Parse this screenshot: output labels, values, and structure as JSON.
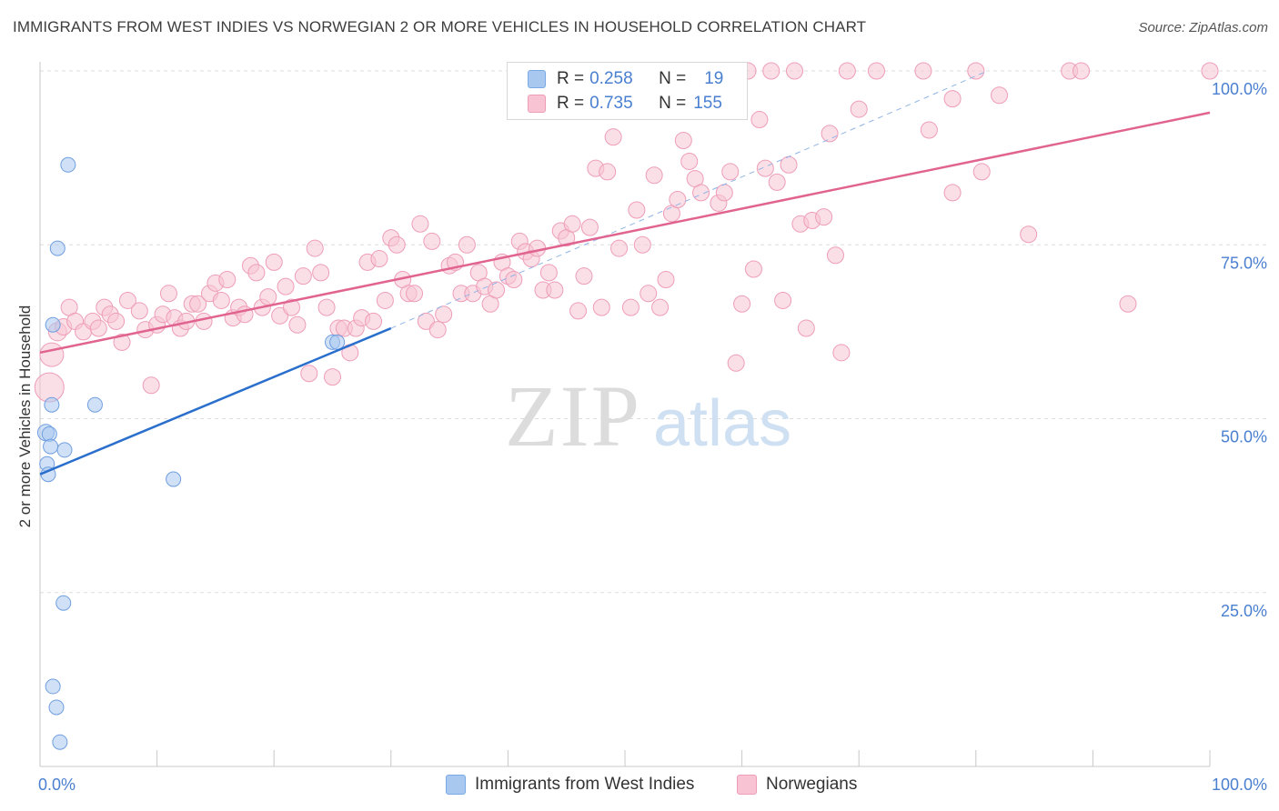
{
  "header": {
    "title": "IMMIGRANTS FROM WEST INDIES VS NORWEGIAN 2 OR MORE VEHICLES IN HOUSEHOLD CORRELATION CHART",
    "source": "Source: ZipAtlas.com"
  },
  "watermark": {
    "zip": "ZIP",
    "atlas": "atlas"
  },
  "stats_legend": {
    "rows": [
      {
        "r_label": "R =",
        "r_value": "0.258",
        "n_label": "N =",
        "n_value": "19",
        "color": "#a9c8f0",
        "border": "#7aaae6"
      },
      {
        "r_label": "R =",
        "r_value": "0.735",
        "n_label": "N =",
        "n_value": "155",
        "color": "#f8c4d4",
        "border": "#ee9db8"
      }
    ]
  },
  "chart_data": {
    "type": "scatter",
    "ylabel": "2 or more Vehicles in Household",
    "xlim": [
      0,
      100
    ],
    "ylim": [
      0,
      100
    ],
    "x_tick_labels": [
      {
        "value": 0,
        "label": "0.0%"
      },
      {
        "value": 100,
        "label": "100.0%"
      }
    ],
    "y_tick_labels": [
      {
        "value": 25,
        "label": "25.0%"
      },
      {
        "value": 50,
        "label": "50.0%"
      },
      {
        "value": 75,
        "label": "75.0%"
      },
      {
        "value": 100,
        "label": "100.0%"
      }
    ],
    "grid": true,
    "series": [
      {
        "name": "Immigrants from West Indies",
        "color": "#a9c8f0",
        "stroke": "#6f9ee0",
        "line_color": "#2a6fcc",
        "trend": {
          "x": [
            0,
            30
          ],
          "y": [
            42,
            63
          ],
          "dashed_to": [
            81,
            100
          ]
        },
        "points": [
          [
            2.4,
            86.5,
            8
          ],
          [
            1.5,
            74.5,
            8
          ],
          [
            1.1,
            63.5,
            8
          ],
          [
            1.0,
            52.0,
            8
          ],
          [
            0.5,
            48.0,
            9
          ],
          [
            0.8,
            47.8,
            8
          ],
          [
            0.9,
            46.0,
            8
          ],
          [
            2.1,
            45.5,
            8
          ],
          [
            0.6,
            43.5,
            8
          ],
          [
            0.7,
            42.0,
            8
          ],
          [
            4.7,
            52.0,
            8
          ],
          [
            11.4,
            41.3,
            8
          ],
          [
            25.0,
            61.0,
            8
          ],
          [
            25.4,
            61.0,
            8
          ],
          [
            2.0,
            23.5,
            8
          ],
          [
            1.1,
            11.5,
            8
          ],
          [
            1.4,
            8.5,
            8
          ],
          [
            1.7,
            3.5,
            8
          ]
        ]
      },
      {
        "name": "Norwegians",
        "color": "#f8c4d4",
        "stroke": "#ee9db8",
        "line_color": "#e0648f",
        "trend": {
          "x": [
            0,
            100
          ],
          "y": [
            59.5,
            94
          ]
        },
        "points": [
          [
            0.8,
            54.5,
            16
          ],
          [
            1.0,
            59.2,
            13
          ],
          [
            1.5,
            62.5,
            10
          ],
          [
            2.0,
            63.2,
            9
          ],
          [
            2.5,
            66.0,
            9
          ],
          [
            3.0,
            64.0,
            9
          ],
          [
            3.7,
            62.5,
            9
          ],
          [
            4.5,
            64.0,
            9
          ],
          [
            5.0,
            63.0,
            9
          ],
          [
            5.5,
            66.0,
            9
          ],
          [
            6.0,
            65.0,
            9
          ],
          [
            6.5,
            64.0,
            9
          ],
          [
            7.0,
            61.0,
            9
          ],
          [
            7.5,
            67.0,
            9
          ],
          [
            8.5,
            65.5,
            9
          ],
          [
            9.0,
            62.8,
            9
          ],
          [
            9.5,
            54.8,
            9
          ],
          [
            10.0,
            63.5,
            9
          ],
          [
            10.5,
            65.0,
            9
          ],
          [
            11.0,
            68.0,
            9
          ],
          [
            11.5,
            64.5,
            9
          ],
          [
            12.0,
            63.0,
            9
          ],
          [
            12.5,
            64.0,
            9
          ],
          [
            13.0,
            66.5,
            9
          ],
          [
            13.5,
            66.5,
            9
          ],
          [
            14.0,
            64.0,
            9
          ],
          [
            14.5,
            68.0,
            9
          ],
          [
            15.0,
            69.5,
            9
          ],
          [
            15.5,
            67.0,
            9
          ],
          [
            16.0,
            70.0,
            9
          ],
          [
            16.5,
            64.5,
            9
          ],
          [
            17.0,
            66.0,
            9
          ],
          [
            17.5,
            65.0,
            9
          ],
          [
            18.0,
            72.0,
            9
          ],
          [
            18.5,
            71.0,
            9
          ],
          [
            19.0,
            66.0,
            9
          ],
          [
            19.5,
            67.5,
            9
          ],
          [
            20.0,
            72.5,
            9
          ],
          [
            20.5,
            64.8,
            9
          ],
          [
            21.0,
            69.0,
            9
          ],
          [
            21.5,
            66.0,
            9
          ],
          [
            22.0,
            63.5,
            9
          ],
          [
            22.5,
            70.5,
            9
          ],
          [
            23.0,
            56.5,
            9
          ],
          [
            23.5,
            74.5,
            9
          ],
          [
            24.0,
            71.0,
            9
          ],
          [
            24.5,
            66.0,
            9
          ],
          [
            25.0,
            56.0,
            9
          ],
          [
            25.5,
            63.0,
            9
          ],
          [
            26.0,
            63.0,
            9
          ],
          [
            26.5,
            59.5,
            9
          ],
          [
            27.0,
            63.0,
            9
          ],
          [
            27.5,
            64.5,
            9
          ],
          [
            28.0,
            72.5,
            9
          ],
          [
            28.5,
            64.0,
            9
          ],
          [
            29.0,
            73.0,
            9
          ],
          [
            29.5,
            67.0,
            9
          ],
          [
            30.0,
            76.0,
            9
          ],
          [
            30.5,
            75.0,
            9
          ],
          [
            31.0,
            70.0,
            9
          ],
          [
            31.5,
            68.0,
            9
          ],
          [
            32.0,
            68.0,
            9
          ],
          [
            32.5,
            78.0,
            9
          ],
          [
            33.0,
            64.0,
            9
          ],
          [
            33.5,
            75.5,
            9
          ],
          [
            34.0,
            62.8,
            9
          ],
          [
            34.5,
            65.0,
            9
          ],
          [
            35.0,
            72.0,
            9
          ],
          [
            35.5,
            72.5,
            9
          ],
          [
            36.0,
            68.0,
            9
          ],
          [
            36.5,
            75.0,
            9
          ],
          [
            37.0,
            68.0,
            9
          ],
          [
            37.5,
            71.0,
            9
          ],
          [
            38.0,
            69.0,
            9
          ],
          [
            38.5,
            66.5,
            9
          ],
          [
            39.0,
            68.5,
            9
          ],
          [
            39.5,
            72.5,
            9
          ],
          [
            40.0,
            70.5,
            9
          ],
          [
            40.5,
            70.0,
            9
          ],
          [
            41.0,
            75.5,
            9
          ],
          [
            41.5,
            74.0,
            9
          ],
          [
            42.0,
            73.0,
            9
          ],
          [
            42.5,
            74.5,
            9
          ],
          [
            43.0,
            68.5,
            9
          ],
          [
            43.5,
            71.0,
            9
          ],
          [
            44.0,
            68.5,
            9
          ],
          [
            44.5,
            77.0,
            9
          ],
          [
            45.0,
            76.0,
            9
          ],
          [
            45.5,
            78.0,
            9
          ],
          [
            46.0,
            65.5,
            9
          ],
          [
            46.5,
            70.5,
            9
          ],
          [
            47.0,
            77.5,
            9
          ],
          [
            47.5,
            86.0,
            9
          ],
          [
            48.0,
            66.0,
            9
          ],
          [
            48.5,
            85.5,
            9
          ],
          [
            49.0,
            90.5,
            9
          ],
          [
            49.5,
            74.5,
            9
          ],
          [
            50.5,
            66.0,
            9
          ],
          [
            51.0,
            80.0,
            9
          ],
          [
            51.5,
            75.0,
            9
          ],
          [
            52.0,
            68.0,
            9
          ],
          [
            52.5,
            85.0,
            9
          ],
          [
            53.0,
            66.0,
            9
          ],
          [
            53.5,
            70.0,
            9
          ],
          [
            54.0,
            79.5,
            9
          ],
          [
            54.5,
            81.5,
            9
          ],
          [
            55.0,
            90.0,
            9
          ],
          [
            55.5,
            87.0,
            9
          ],
          [
            56.0,
            84.5,
            9
          ],
          [
            56.5,
            82.5,
            9
          ],
          [
            57.0,
            100.0,
            9
          ],
          [
            58.0,
            81.0,
            9
          ],
          [
            58.5,
            82.5,
            9
          ],
          [
            59.0,
            85.5,
            9
          ],
          [
            59.5,
            58.0,
            9
          ],
          [
            60.0,
            66.5,
            9
          ],
          [
            60.5,
            100.0,
            9
          ],
          [
            61.0,
            71.5,
            9
          ],
          [
            61.5,
            93.0,
            9
          ],
          [
            62.0,
            86.0,
            9
          ],
          [
            62.5,
            100.0,
            9
          ],
          [
            63.0,
            84.0,
            9
          ],
          [
            63.5,
            67.0,
            9
          ],
          [
            64.0,
            86.5,
            9
          ],
          [
            64.5,
            100.0,
            9
          ],
          [
            65.0,
            78.0,
            9
          ],
          [
            65.5,
            63.0,
            9
          ],
          [
            66.0,
            78.5,
            9
          ],
          [
            67.0,
            79.0,
            9
          ],
          [
            67.5,
            91.0,
            9
          ],
          [
            68.0,
            73.5,
            9
          ],
          [
            68.5,
            59.5,
            9
          ],
          [
            69.0,
            100.0,
            9
          ],
          [
            70.0,
            94.5,
            9
          ],
          [
            71.5,
            100.0,
            9
          ],
          [
            75.5,
            100.0,
            9
          ],
          [
            76.0,
            91.5,
            9
          ],
          [
            78.0,
            82.5,
            9
          ],
          [
            80.0,
            100.0,
            9
          ],
          [
            80.5,
            85.5,
            9
          ],
          [
            82.0,
            96.5,
            9
          ],
          [
            84.5,
            76.5,
            9
          ],
          [
            88.0,
            100.0,
            9
          ],
          [
            89.0,
            100.0,
            9
          ],
          [
            93.0,
            66.5,
            9
          ],
          [
            100.0,
            100.0,
            9
          ],
          [
            78.0,
            96.0,
            9
          ]
        ]
      }
    ]
  }
}
